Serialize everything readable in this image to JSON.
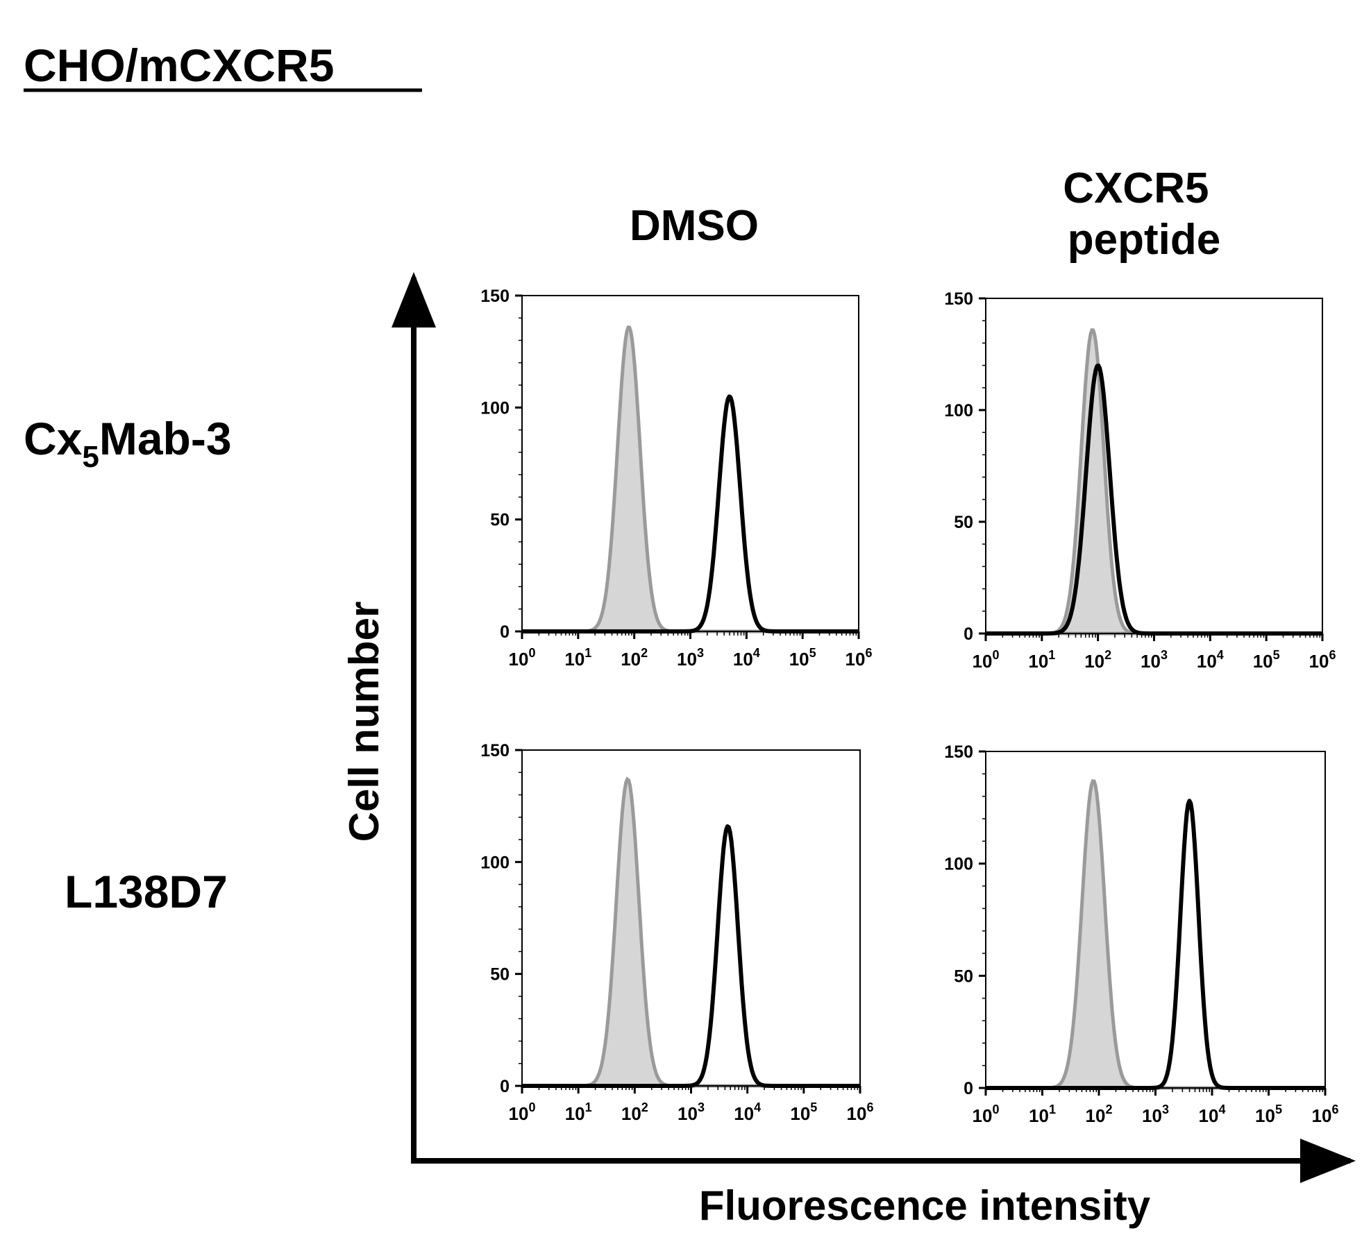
{
  "figure": {
    "title": "CHO/mCXCR5",
    "column_labels": [
      [
        "DMSO"
      ],
      [
        "CXCR5",
        "peptide"
      ]
    ],
    "row_labels": [
      {
        "main": "Cx",
        "sub": "5",
        "rest": "Mab-3"
      },
      {
        "main": "L138D7",
        "sub": "",
        "rest": ""
      }
    ],
    "y_axis_label": "Cell number",
    "x_axis_label": "Fluorescence intensity"
  },
  "colors": {
    "control_fill": "#d6d6d6",
    "control_line": "#9a9a9a",
    "sample_line": "#000000",
    "axis": "#000000"
  },
  "chart_data": [
    {
      "type": "area",
      "panel": "Cx5Mab-3 / DMSO",
      "xscale": "log",
      "xlim": [
        1,
        1000000
      ],
      "x_ticks": [
        "10^0",
        "10^1",
        "10^2",
        "10^3",
        "10^4",
        "10^5",
        "10^6"
      ],
      "ylim": [
        0,
        150
      ],
      "y_ticks": [
        0,
        50,
        100,
        150
      ],
      "series": [
        {
          "role": "control",
          "filled": true,
          "peak_x": 80,
          "peak_y": 136,
          "width_decades": 0.2
        },
        {
          "role": "sample",
          "filled": false,
          "peak_x": 5000,
          "peak_y": 105,
          "width_decades": 0.19
        }
      ]
    },
    {
      "type": "area",
      "panel": "Cx5Mab-3 / CXCR5 peptide",
      "xscale": "log",
      "xlim": [
        1,
        1000000
      ],
      "x_ticks": [
        "10^0",
        "10^1",
        "10^2",
        "10^3",
        "10^4",
        "10^5",
        "10^6"
      ],
      "ylim": [
        0,
        150
      ],
      "y_ticks": [
        0,
        50,
        100,
        150
      ],
      "series": [
        {
          "role": "control",
          "filled": true,
          "peak_x": 80,
          "peak_y": 136,
          "width_decades": 0.2
        },
        {
          "role": "sample",
          "filled": false,
          "peak_x": 100,
          "peak_y": 120,
          "width_decades": 0.21
        }
      ]
    },
    {
      "type": "area",
      "panel": "L138D7 / DMSO",
      "xscale": "log",
      "xlim": [
        1,
        1000000
      ],
      "x_ticks": [
        "10^0",
        "10^1",
        "10^2",
        "10^3",
        "10^4",
        "10^5",
        "10^6"
      ],
      "ylim": [
        0,
        150
      ],
      "y_ticks": [
        0,
        50,
        100,
        150
      ],
      "series": [
        {
          "role": "control",
          "filled": true,
          "peak_x": 75,
          "peak_y": 137,
          "width_decades": 0.2
        },
        {
          "role": "sample",
          "filled": false,
          "peak_x": 4500,
          "peak_y": 116,
          "width_decades": 0.18
        }
      ]
    },
    {
      "type": "area",
      "panel": "L138D7 / CXCR5 peptide",
      "xscale": "log",
      "xlim": [
        1,
        1000000
      ],
      "x_ticks": [
        "10^0",
        "10^1",
        "10^2",
        "10^3",
        "10^4",
        "10^5",
        "10^6"
      ],
      "ylim": [
        0,
        150
      ],
      "y_ticks": [
        0,
        50,
        100,
        150
      ],
      "series": [
        {
          "role": "control",
          "filled": true,
          "peak_x": 80,
          "peak_y": 137,
          "width_decades": 0.2
        },
        {
          "role": "sample",
          "filled": false,
          "peak_x": 4000,
          "peak_y": 128,
          "width_decades": 0.16
        }
      ]
    }
  ]
}
